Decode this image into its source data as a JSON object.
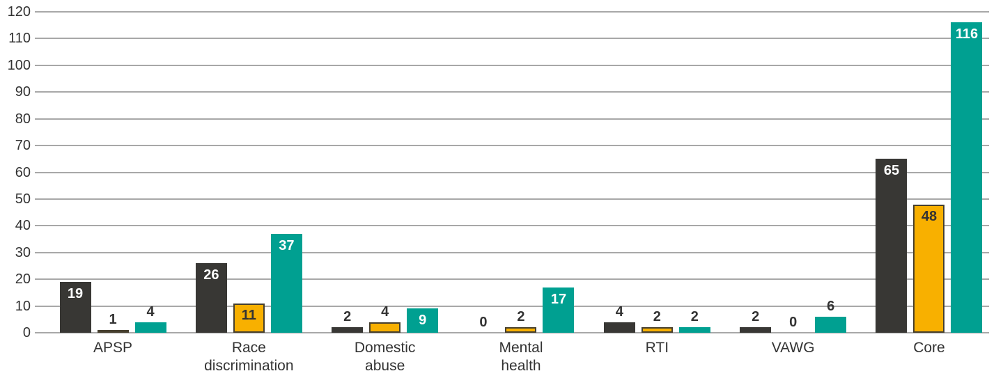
{
  "chart_data": {
    "type": "bar",
    "title": "",
    "xlabel": "",
    "ylabel": "",
    "ylim": [
      0,
      120
    ],
    "ytick_step": 10,
    "ytick_labels": [
      "0",
      "10",
      "20",
      "30",
      "40",
      "50",
      "60",
      "70",
      "80",
      "90",
      "100",
      "110",
      "120"
    ],
    "grid": true,
    "legend_position": "none",
    "categories": [
      "APSP",
      "Race discrimination",
      "Domestic abuse",
      "Mental health",
      "RTI",
      "VAWG",
      "Core"
    ],
    "category_lines": [
      [
        "APSP"
      ],
      [
        "Race",
        "discrimination"
      ],
      [
        "Domestic",
        "abuse"
      ],
      [
        "Mental",
        "health"
      ],
      [
        "RTI"
      ],
      [
        "VAWG"
      ],
      [
        "Core"
      ]
    ],
    "series": [
      {
        "name": "dark",
        "color": "#383734",
        "label_color_inside": "#ffffff",
        "bordered": false,
        "values": [
          19,
          26,
          2,
          0,
          4,
          2,
          65
        ]
      },
      {
        "name": "amber",
        "color": "#f8b000",
        "label_color_inside": "#333333",
        "bordered": true,
        "values": [
          1,
          11,
          4,
          2,
          2,
          0,
          48
        ]
      },
      {
        "name": "teal",
        "color": "#00a091",
        "label_color_inside": "#ffffff",
        "bordered": false,
        "values": [
          4,
          37,
          9,
          17,
          2,
          6,
          116
        ]
      }
    ],
    "data_labels_shown": true,
    "outside_label_color": "#333333"
  },
  "colors": {
    "background": "#ffffff",
    "gridline": "#a8a8a8",
    "axis_text": "#333333",
    "bar_border": "#463f2e"
  }
}
